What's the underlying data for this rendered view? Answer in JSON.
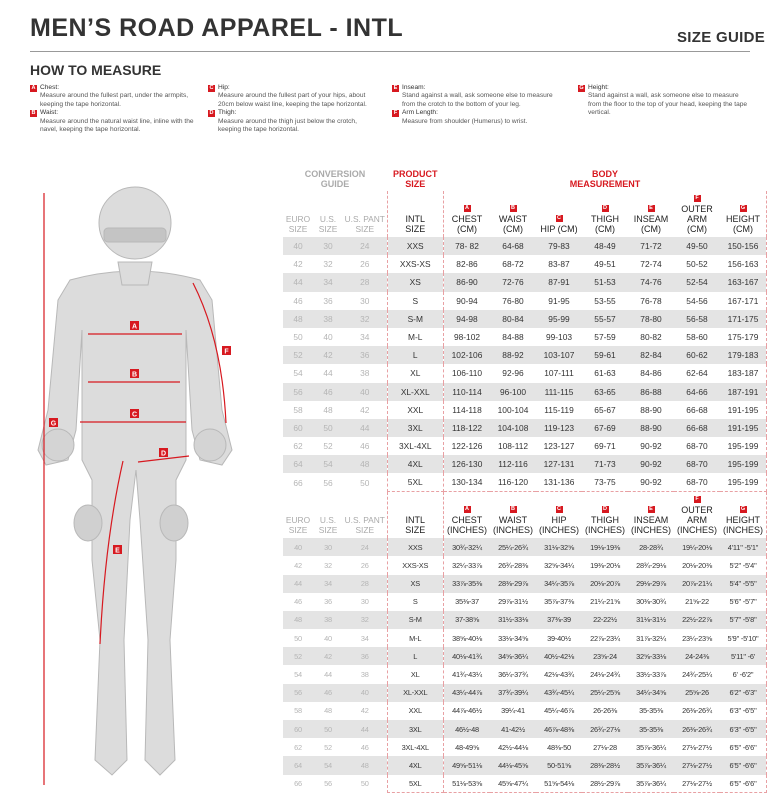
{
  "header": {
    "title": "MEN’S ROAD APPAREL - INTL",
    "size_guide": "SIZE GUIDE"
  },
  "how_to_measure": {
    "title": "HOW TO MEASURE",
    "items": [
      {
        "letter": "A",
        "label": "Chest:",
        "text": "Measure around the fullest part, under the armpits, keeping the tape horizontal."
      },
      {
        "letter": "B",
        "label": "Waist:",
        "text": "Measure around the natural waist line, inline with the navel, keeping the tape horizontal."
      },
      {
        "letter": "C",
        "label": "Hip:",
        "text": "Measure around the fullest part of your hips, about 20cm below waist line, keeping the tape horizontal."
      },
      {
        "letter": "D",
        "label": "Thigh:",
        "text": "Measure around the thigh just below the crotch, keeping the tape horizontal."
      },
      {
        "letter": "E",
        "label": "Inseam:",
        "text": "Stand against a wall, ask someone else to measure from the crotch to the bottom of your leg."
      },
      {
        "letter": "F",
        "label": "Arm Length:",
        "text": "Measure from shoulder (Humerus) to wrist."
      },
      {
        "letter": "G",
        "label": "Height:",
        "text": "Stand against a wall, ask someone else to measure from the floor to the top of your head, keeping the tape vertical."
      }
    ]
  },
  "colors": {
    "accent": "#d71920",
    "row_shade": "#e4e4e4",
    "conversion_text": "#b5b5b5"
  },
  "figure": {
    "labels": [
      "A",
      "B",
      "C",
      "D",
      "E",
      "F",
      "G"
    ]
  },
  "table": {
    "group_headers": {
      "conversion": "CONVERSION GUIDE",
      "product": "PRODUCT SIZE",
      "body": "BODY MEASUREMENT"
    },
    "conversion_headers": [
      "EURO SIZE",
      "U.S. SIZE",
      "U.S. PANT SIZE"
    ],
    "intl_header": "INTL SIZE",
    "letters": [
      "A",
      "B",
      "C",
      "D",
      "E",
      "F",
      "G"
    ],
    "cm_headers": [
      "CHEST (CM)",
      "WAIST (CM)",
      "HIP (CM)",
      "THIGH (CM)",
      "INSEAM (CM)",
      "OUTER ARM (CM)",
      "HEIGHT (CM)"
    ],
    "inch_headers": [
      "CHEST (INCHES)",
      "WAIST (INCHES)",
      "HIP (INCHES)",
      "THIGH (INCHES)",
      "INSEAM (INCHES)",
      "OUTER ARM (INCHES)",
      "HEIGHT (INCHES)"
    ],
    "conversion": [
      [
        "40",
        "30",
        "24"
      ],
      [
        "42",
        "32",
        "26"
      ],
      [
        "44",
        "34",
        "28"
      ],
      [
        "46",
        "36",
        "30"
      ],
      [
        "48",
        "38",
        "32"
      ],
      [
        "50",
        "40",
        "34"
      ],
      [
        "52",
        "42",
        "36"
      ],
      [
        "54",
        "44",
        "38"
      ],
      [
        "56",
        "46",
        "40"
      ],
      [
        "58",
        "48",
        "42"
      ],
      [
        "60",
        "50",
        "44"
      ],
      [
        "62",
        "52",
        "46"
      ],
      [
        "64",
        "54",
        "48"
      ],
      [
        "66",
        "56",
        "50"
      ]
    ],
    "sizes": [
      "XXS",
      "XXS-XS",
      "XS",
      "S",
      "S-M",
      "M-L",
      "L",
      "XL",
      "XL-XXL",
      "XXL",
      "3XL",
      "3XL-4XL",
      "4XL",
      "5XL"
    ],
    "cm": [
      [
        "78- 82",
        "64-68",
        "79-83",
        "48-49",
        "71-72",
        "49-50",
        "150-156"
      ],
      [
        "82-86",
        "68-72",
        "83-87",
        "49-51",
        "72-74",
        "50-52",
        "156-163"
      ],
      [
        "86-90",
        "72-76",
        "87-91",
        "51-53",
        "74-76",
        "52-54",
        "163-167"
      ],
      [
        "90-94",
        "76-80",
        "91-95",
        "53-55",
        "76-78",
        "54-56",
        "167-171"
      ],
      [
        "94-98",
        "80-84",
        "95-99",
        "55-57",
        "78-80",
        "56-58",
        "171-175"
      ],
      [
        "98-102",
        "84-88",
        "99-103",
        "57-59",
        "80-82",
        "58-60",
        "175-179"
      ],
      [
        "102-106",
        "88-92",
        "103-107",
        "59-61",
        "82-84",
        "60-62",
        "179-183"
      ],
      [
        "106-110",
        "92-96",
        "107-111",
        "61-63",
        "84-86",
        "62-64",
        "183-187"
      ],
      [
        "110-114",
        "96-100",
        "111-115",
        "63-65",
        "86-88",
        "64-66",
        "187-191"
      ],
      [
        "114-118",
        "100-104",
        "115-119",
        "65-67",
        "88-90",
        "66-68",
        "191-195"
      ],
      [
        "118-122",
        "104-108",
        "119-123",
        "67-69",
        "88-90",
        "66-68",
        "191-195"
      ],
      [
        "122-126",
        "108-112",
        "123-127",
        "69-71",
        "90-92",
        "68-70",
        "195-199"
      ],
      [
        "126-130",
        "112-116",
        "127-131",
        "71-73",
        "90-92",
        "68-70",
        "195-199"
      ],
      [
        "130-134",
        "116-120",
        "131-136",
        "73-75",
        "90-92",
        "68-70",
        "195-199"
      ]
    ],
    "inches": [
      [
        "30¾-32¼",
        "25¼-26¾",
        "31⅛-32⅝",
        "19⅛-19⅜",
        "28-28¾",
        "19¼-20⅛",
        "4'11\" -5'1\""
      ],
      [
        "32¼-33⅞",
        "26¾-28⅜",
        "32⅝-34¼",
        "19⅜-20⅛",
        "28¾-29⅛",
        "20⅛-20⅜",
        "5'2\" -5'4\""
      ],
      [
        "33⅞-35⅜",
        "28⅜-29⅞",
        "34¼-35⅞",
        "20⅛-20⅞",
        "29⅛-29⅞",
        "20⅞-21¼",
        "5'4\" -5'5\""
      ],
      [
        "35⅜-37",
        "29⅞-31½",
        "35⅞-37⅜",
        "21¼-21⅝",
        "30⅜-30¾",
        "21⅝-22",
        "5'6\" -5'7\""
      ],
      [
        "37-38⅝",
        "31½-33⅛",
        "37⅜-39",
        "22-22½",
        "31⅛-31½",
        "22½-22⅞",
        "5'7\" -5'8\""
      ],
      [
        "38⅝-40⅛",
        "33⅛-34⅝",
        "39-40½",
        "22⅞-23¼",
        "31⅞-32¼",
        "23¼-23⅝",
        "5'9\" -5'10\""
      ],
      [
        "40⅛-41¾",
        "34⅝-36¼",
        "40½-42⅛",
        "23⅝-24",
        "32⅝-33⅛",
        "24-24⅜",
        "5'11\" -6'"
      ],
      [
        "41¾-43¼",
        "36¼-37¾",
        "42⅛-43¾",
        "24⅛-24¾",
        "33½-33⅞",
        "24¾-25¼",
        "6' -6'2\""
      ],
      [
        "43¼-44⅞",
        "37¾-39¼",
        "43¾-45¼",
        "25¼-25⅝",
        "34¼-34⅝",
        "25⅝-26",
        "6'2\" -6'3\""
      ],
      [
        "44⅞-46½",
        "39¼-41",
        "45¼-46⅞",
        "26-26⅜",
        "35-35⅜",
        "26⅜-26¾",
        "6'3\" -6'5\""
      ],
      [
        "46½-48",
        "41-42½",
        "46⅞-48⅜",
        "26¾-27⅛",
        "35-35⅜",
        "26⅜-26¾",
        "6'3\" -6'5\""
      ],
      [
        "48-49⅝",
        "42½-44⅛",
        "48⅜-50",
        "27⅛-28",
        "35⅞-36¼",
        "27⅛-27½",
        "6'5\" -6'6\""
      ],
      [
        "49⅝-51⅛",
        "44⅛-45⅝",
        "50-51⅝",
        "28⅜-28½",
        "35⅞-36¼",
        "27⅛-27½",
        "6'5\" -6'6\""
      ],
      [
        "51⅛-53⅝",
        "45⅝-47¼",
        "51⅝-54⅛",
        "28½-29⅞",
        "35⅞-36¼",
        "27⅛-27½",
        "6'5\" -6'6\""
      ]
    ]
  }
}
